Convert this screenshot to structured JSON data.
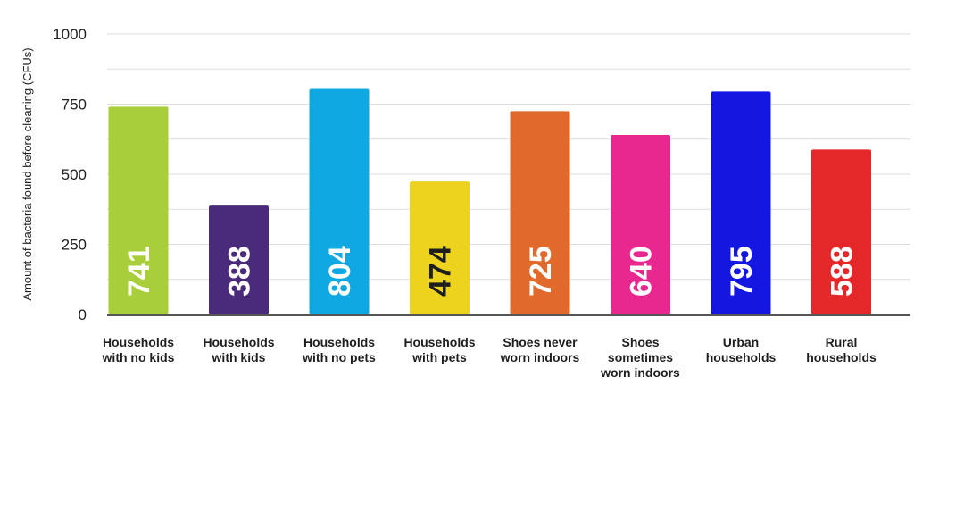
{
  "chart_data": {
    "type": "bar",
    "title": "",
    "xlabel": "",
    "ylabel": "Amount of bacteria found before cleaning (CFUs)",
    "ylim": [
      0,
      1000
    ],
    "yticks": [
      0,
      250,
      500,
      750,
      1000
    ],
    "grid": true,
    "categories": [
      [
        "Households",
        "with no kids"
      ],
      [
        "Households",
        "with kids"
      ],
      [
        "Households",
        "with no pets"
      ],
      [
        "Households",
        "with pets"
      ],
      [
        "Shoes never",
        "worn indoors"
      ],
      [
        "Shoes",
        "sometimes",
        "worn indoors"
      ],
      [
        "Urban",
        "households"
      ],
      [
        "Rural",
        "households"
      ]
    ],
    "values": [
      741,
      388,
      804,
      474,
      725,
      640,
      795,
      588
    ],
    "data_labels": [
      "741",
      "388",
      "804",
      "474",
      "725",
      "640",
      "795",
      "588"
    ],
    "bar_colors": [
      "#a8cf3a",
      "#4a2a7a",
      "#0fa8e2",
      "#eed31e",
      "#e0692b",
      "#e8288e",
      "#1317e0",
      "#e4282a"
    ],
    "label_colors": [
      "#ffffff",
      "#ffffff",
      "#ffffff",
      "#1e1e1e",
      "#ffffff",
      "#ffffff",
      "#ffffff",
      "#ffffff"
    ],
    "grid_color": "#dddddd",
    "axis_color": "#1e1e1e"
  }
}
